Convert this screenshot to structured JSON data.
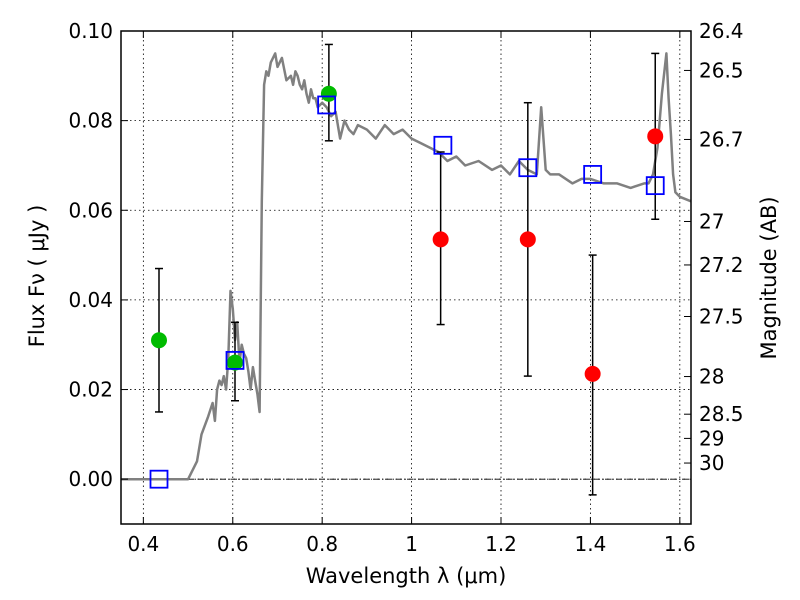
{
  "chart_data": {
    "type": "scatter",
    "xlabel": "Wavelength  λ (μm)",
    "ylabel": "Flux  Fν  ( μJy )",
    "y2label": "Magnitude (AB)",
    "xlim": [
      0.35,
      1.625
    ],
    "ylim": [
      -0.01,
      0.1
    ],
    "x_ticks": [
      0.4,
      0.6,
      0.8,
      1.0,
      1.2,
      1.4,
      1.6
    ],
    "x_tick_labels": [
      "0.4",
      "0.6",
      "0.8",
      "1",
      "1.2",
      "1.4",
      "1.6"
    ],
    "y_ticks": [
      0.0,
      0.02,
      0.04,
      0.06,
      0.08,
      0.1
    ],
    "y_tick_labels": [
      "0.00",
      "0.02",
      "0.04",
      "0.06",
      "0.08",
      "0.10"
    ],
    "y2_ticks": [
      {
        "label": "26.4",
        "flux": 0.1
      },
      {
        "label": "26.5",
        "flux": 0.0912
      },
      {
        "label": "26.7",
        "flux": 0.0758
      },
      {
        "label": "27",
        "flux": 0.0575
      },
      {
        "label": "27.2",
        "flux": 0.0478
      },
      {
        "label": "27.5",
        "flux": 0.0363
      },
      {
        "label": "28",
        "flux": 0.0229
      },
      {
        "label": "28.5",
        "flux": 0.0145
      },
      {
        "label": "29",
        "flux": 0.0091
      },
      {
        "label": "30",
        "flux": 0.0036
      }
    ],
    "grid": true,
    "colors": {
      "model": "#808080",
      "green": "#00bb00",
      "red": "#ff0000",
      "square": "#0000ff",
      "errorbar": "#000000",
      "zero_line": "#000000"
    },
    "model_sed": {
      "x": [
        0.35,
        0.43,
        0.5,
        0.52,
        0.53,
        0.545,
        0.555,
        0.56,
        0.565,
        0.57,
        0.575,
        0.58,
        0.585,
        0.59,
        0.595,
        0.6,
        0.605,
        0.61,
        0.615,
        0.62,
        0.625,
        0.63,
        0.635,
        0.64,
        0.645,
        0.65,
        0.655,
        0.66,
        0.665,
        0.67,
        0.675,
        0.68,
        0.685,
        0.69,
        0.695,
        0.7,
        0.71,
        0.72,
        0.73,
        0.735,
        0.74,
        0.745,
        0.75,
        0.755,
        0.76,
        0.765,
        0.77,
        0.775,
        0.78,
        0.785,
        0.79,
        0.8,
        0.81,
        0.82,
        0.83,
        0.84,
        0.85,
        0.86,
        0.87,
        0.88,
        0.9,
        0.92,
        0.94,
        0.96,
        0.98,
        1.0,
        1.02,
        1.04,
        1.06,
        1.08,
        1.1,
        1.12,
        1.15,
        1.18,
        1.2,
        1.22,
        1.24,
        1.26,
        1.28,
        1.29,
        1.3,
        1.31,
        1.33,
        1.36,
        1.38,
        1.4,
        1.43,
        1.46,
        1.49,
        1.52,
        1.53,
        1.54,
        1.55,
        1.56,
        1.57,
        1.575,
        1.58,
        1.585,
        1.59,
        1.6,
        1.625
      ],
      "y": [
        0.0,
        0.0,
        0.0,
        0.004,
        0.01,
        0.014,
        0.017,
        0.013,
        0.02,
        0.022,
        0.021,
        0.023,
        0.02,
        0.027,
        0.042,
        0.038,
        0.031,
        0.035,
        0.026,
        0.03,
        0.028,
        0.027,
        0.024,
        0.02,
        0.025,
        0.022,
        0.019,
        0.015,
        0.062,
        0.088,
        0.091,
        0.09,
        0.093,
        0.094,
        0.095,
        0.092,
        0.094,
        0.089,
        0.09,
        0.088,
        0.091,
        0.09,
        0.088,
        0.087,
        0.089,
        0.086,
        0.084,
        0.087,
        0.085,
        0.085,
        0.083,
        0.084,
        0.083,
        0.081,
        0.082,
        0.076,
        0.08,
        0.078,
        0.077,
        0.079,
        0.078,
        0.076,
        0.079,
        0.077,
        0.078,
        0.076,
        0.075,
        0.074,
        0.073,
        0.071,
        0.072,
        0.07,
        0.071,
        0.069,
        0.07,
        0.068,
        0.071,
        0.069,
        0.068,
        0.083,
        0.069,
        0.068,
        0.068,
        0.066,
        0.067,
        0.067,
        0.066,
        0.066,
        0.065,
        0.066,
        0.066,
        0.068,
        0.074,
        0.086,
        0.095,
        0.085,
        0.077,
        0.068,
        0.064,
        0.063,
        0.062
      ]
    },
    "green_points": [
      {
        "x": 0.435,
        "y": 0.031,
        "err_low": 0.015,
        "err_high": 0.047
      },
      {
        "x": 0.605,
        "y": 0.026,
        "err_low": 0.0175,
        "err_high": 0.035
      },
      {
        "x": 0.815,
        "y": 0.086,
        "err_low": 0.0755,
        "err_high": 0.097
      }
    ],
    "red_points": [
      {
        "x": 1.065,
        "y": 0.0535,
        "err_low": 0.0345,
        "err_high": 0.073
      },
      {
        "x": 1.26,
        "y": 0.0535,
        "err_low": 0.023,
        "err_high": 0.084
      },
      {
        "x": 1.405,
        "y": 0.0235,
        "err_low": -0.0035,
        "err_high": 0.05
      },
      {
        "x": 1.545,
        "y": 0.0765,
        "err_low": 0.058,
        "err_high": 0.095
      }
    ],
    "model_squares": [
      {
        "x": 0.435,
        "y": 0.0
      },
      {
        "x": 0.605,
        "y": 0.0265
      },
      {
        "x": 0.81,
        "y": 0.0835
      },
      {
        "x": 1.07,
        "y": 0.0745
      },
      {
        "x": 1.26,
        "y": 0.0695
      },
      {
        "x": 1.405,
        "y": 0.068
      },
      {
        "x": 1.545,
        "y": 0.0655
      }
    ]
  }
}
